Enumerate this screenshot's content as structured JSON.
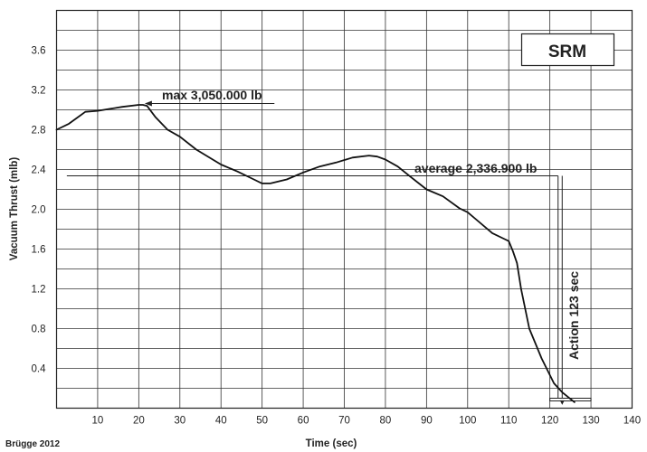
{
  "chart_data": {
    "type": "line",
    "ylabel": "Vacuum Thrust (mlb)",
    "xlabel": "Time (sec)",
    "x_ticks": [
      10,
      20,
      30,
      40,
      50,
      60,
      70,
      80,
      90,
      100,
      110,
      120,
      130,
      140
    ],
    "y_ticks": [
      0.4,
      0.8,
      1.2,
      1.6,
      2.0,
      2.4,
      2.8,
      3.2,
      3.6
    ],
    "x_tick_labels": [
      "10",
      "20",
      "30",
      "40",
      "50",
      "60",
      "70",
      "80",
      "90",
      "100",
      "110",
      "120",
      "130",
      "140"
    ],
    "y_tick_labels": [
      "0.4",
      "0.8",
      "1.2",
      "1.6",
      "2.0",
      "2.4",
      "2.8",
      "3.2",
      "3.6"
    ],
    "xlim": [
      0,
      140
    ],
    "ylim": [
      0,
      4.0
    ],
    "grid": true,
    "series": [
      {
        "x": [
          0,
          3,
          7,
          10,
          13,
          16,
          20,
          21,
          22,
          24,
          27,
          30,
          34,
          40,
          44,
          48,
          50,
          52,
          56,
          60,
          64,
          68,
          72,
          76,
          78,
          80,
          83,
          86,
          90,
          94,
          98,
          100,
          102,
          106,
          109,
          110,
          111,
          112,
          113,
          115,
          118,
          121,
          123,
          126
        ],
        "y": [
          2.8,
          2.86,
          2.98,
          2.99,
          3.01,
          3.03,
          3.05,
          3.05,
          3.04,
          2.93,
          2.8,
          2.73,
          2.6,
          2.45,
          2.38,
          2.3,
          2.26,
          2.26,
          2.3,
          2.37,
          2.43,
          2.47,
          2.52,
          2.54,
          2.53,
          2.5,
          2.43,
          2.33,
          2.2,
          2.13,
          2.01,
          1.97,
          1.9,
          1.76,
          1.7,
          1.68,
          1.58,
          1.46,
          1.2,
          0.8,
          0.5,
          0.25,
          0.16,
          0.06
        ]
      }
    ],
    "annotations": {
      "max_label": "max 3,050.000 lb",
      "average_label": "average 2,336.900 lb",
      "action_label": "Action 123 sec",
      "box_label": "SRM"
    },
    "average_value": 2.3369,
    "max_point": [
      21,
      3.05
    ],
    "action_time": 123
  },
  "credit": "Brügge 2012"
}
